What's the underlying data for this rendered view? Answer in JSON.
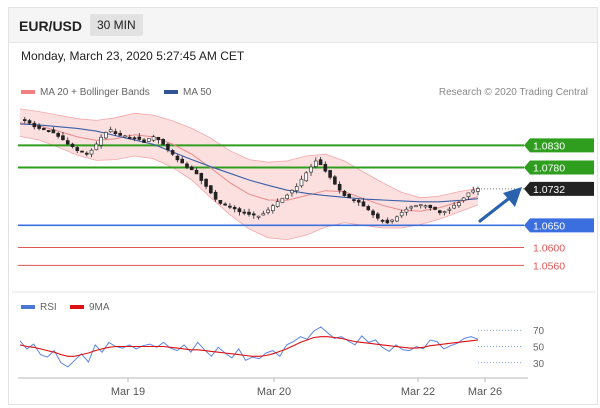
{
  "header": {
    "symbol": "EUR/USD",
    "timeframe": "30 MIN",
    "datetime": "Monday, March 23, 2020 5:27:45 AM CET"
  },
  "colors": {
    "bollinger": "#f4a6a6",
    "bollinger_fill": "#fbdada",
    "ma20": "#e98a8a",
    "ma50": "#3a5fa8",
    "candle": "#222222",
    "resistance": "#2f9e1f",
    "support_blue": "#3b6fe0",
    "support_red": "#e05555",
    "current": "#222222",
    "arrow": "#2a62ad",
    "rsi": "#5b86e5",
    "rsi_ma": "#dd1111"
  },
  "chart_data": [
    {
      "type": "candlestick",
      "legend": [
        {
          "name": "MA 20 + Bollinger Bands",
          "color": "#f08080"
        },
        {
          "name": "MA 50",
          "color": "#2f5597"
        }
      ],
      "source": "Research © 2020 Trading Central",
      "x_ticks": [
        "Mar 19",
        "Mar 20",
        "Mar 22",
        "Mar 26"
      ],
      "ylim": [
        1.0545,
        1.0905
      ],
      "price_levels": [
        {
          "label": "1.0830",
          "value": 1.083,
          "kind": "resistance"
        },
        {
          "label": "1.0780",
          "value": 1.078,
          "kind": "resistance"
        },
        {
          "label": "1.0732",
          "value": 1.0732,
          "kind": "current"
        },
        {
          "label": "1.0650",
          "value": 1.065,
          "kind": "support"
        },
        {
          "label": "1.0600",
          "value": 1.06,
          "kind": "support-minor"
        },
        {
          "label": "1.0560",
          "value": 1.056,
          "kind": "support-minor"
        }
      ],
      "close_path": [
        1.0889,
        1.0884,
        1.0878,
        1.0873,
        1.0869,
        1.0866,
        1.0862,
        1.0856,
        1.085,
        1.0842,
        1.0834,
        1.0825,
        1.0818,
        1.0813,
        1.0812,
        1.0818,
        1.0832,
        1.0848,
        1.086,
        1.0864,
        1.0858,
        1.0852,
        1.085,
        1.0848,
        1.0846,
        1.0842,
        1.0838,
        1.0843,
        1.0848,
        1.0844,
        1.0832,
        1.082,
        1.0808,
        1.0797,
        1.079,
        1.0782,
        1.0774,
        1.0765,
        1.0752,
        1.0738,
        1.0722,
        1.0708,
        1.07,
        1.0694,
        1.0689,
        1.0685,
        1.0682,
        1.0678,
        1.0676,
        1.0673,
        1.0671,
        1.0676,
        1.0685,
        1.0694,
        1.0703,
        1.0712,
        1.072,
        1.0728,
        1.0738,
        1.0752,
        1.0767,
        1.0782,
        1.0795,
        1.0788,
        1.0772,
        1.0758,
        1.0742,
        1.0728,
        1.0718,
        1.0711,
        1.0706,
        1.0701,
        1.0694,
        1.0684,
        1.0674,
        1.0664,
        1.0659,
        1.0657,
        1.0662,
        1.0671,
        1.068,
        1.0687,
        1.0692,
        1.0695,
        1.0696,
        1.0694,
        1.069,
        1.0685,
        1.068,
        1.0682,
        1.0688,
        1.0695,
        1.0703,
        1.0712,
        1.0722,
        1.0729,
        1.0733
      ],
      "ma50_path": [
        1.0878,
        1.0876,
        1.0872,
        1.0868,
        1.0862,
        1.0852,
        1.0842,
        1.0832,
        1.0815,
        1.0798,
        1.0782,
        1.0767,
        1.0752,
        1.074,
        1.0729,
        1.0722,
        1.0717,
        1.0713,
        1.0709,
        1.0707,
        1.0705,
        1.0703,
        1.0703,
        1.0706,
        1.071
      ],
      "bollinger_upper": [
        1.0912,
        1.0906,
        1.0898,
        1.089,
        1.0886,
        1.0892,
        1.0902,
        1.0898,
        1.0885,
        1.0868,
        1.0846,
        1.0818,
        1.0798,
        1.0792,
        1.0795,
        1.0806,
        1.081,
        1.0795,
        1.077,
        1.0746,
        1.0724,
        1.0712,
        1.0716,
        1.0726,
        1.0733
      ],
      "bollinger_lower": [
        1.085,
        1.0842,
        1.0826,
        1.0808,
        1.0796,
        1.0798,
        1.0806,
        1.08,
        1.078,
        1.0752,
        1.0712,
        1.0674,
        1.0642,
        1.0622,
        1.0618,
        1.0628,
        1.0646,
        1.0656,
        1.065,
        1.0644,
        1.0644,
        1.0652,
        1.0664,
        1.068,
        1.0696
      ]
    },
    {
      "type": "line",
      "legend": [
        {
          "name": "RSI",
          "color": "#4a77d4"
        },
        {
          "name": "9MA",
          "color": "#dd1111"
        }
      ],
      "y_ticks": [
        "70",
        "50",
        "30"
      ],
      "ylim": [
        15,
        85
      ],
      "rsi_path": [
        57,
        47,
        53,
        40,
        37,
        45,
        30,
        25,
        33,
        41,
        31,
        52,
        43,
        55,
        50,
        48,
        52,
        47,
        51,
        53,
        49,
        55,
        48,
        45,
        52,
        43,
        55,
        46,
        38,
        49,
        42,
        36,
        47,
        33,
        37,
        35,
        42,
        45,
        38,
        52,
        56,
        62,
        59,
        69,
        74,
        67,
        60,
        62,
        57,
        52,
        63,
        55,
        58,
        49,
        44,
        52,
        46,
        45,
        50,
        47,
        58,
        56,
        47,
        51,
        54,
        60,
        62,
        59
      ],
      "rsi_ma_path": [
        52,
        50,
        49,
        47,
        45,
        43,
        40,
        38,
        38,
        40,
        42,
        45,
        47,
        49,
        50,
        50,
        50,
        50,
        50,
        50,
        50,
        50,
        49,
        48,
        47,
        46,
        46,
        45,
        44,
        43,
        42,
        41,
        40,
        39,
        38,
        38,
        39,
        41,
        44,
        47,
        51,
        55,
        58,
        61,
        62,
        62,
        61,
        60,
        58,
        56,
        55,
        54,
        53,
        52,
        51,
        50,
        49,
        48,
        48,
        49,
        51,
        52,
        53,
        54,
        55,
        56,
        57,
        58
      ]
    }
  ]
}
